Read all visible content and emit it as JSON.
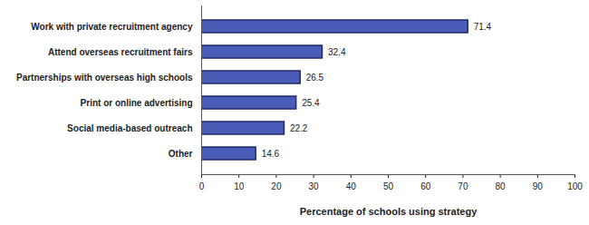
{
  "chart_data": {
    "type": "bar",
    "orientation": "horizontal",
    "categories": [
      "Work with private recruitment agency",
      "Attend overseas recruitment fairs",
      "Partnerships with overseas high schools",
      "Print or online advertising",
      "Social media-based outreach",
      "Other"
    ],
    "values": [
      71.4,
      32.4,
      26.5,
      25.4,
      22.2,
      14.6
    ],
    "color": "#4a5cb8",
    "xlim": [
      0,
      100
    ],
    "xticks": [
      0,
      10,
      20,
      30,
      40,
      50,
      60,
      70,
      80,
      90,
      100
    ],
    "x_label": "Percentage of schools using strategy",
    "data_labels": true,
    "grid": false
  }
}
